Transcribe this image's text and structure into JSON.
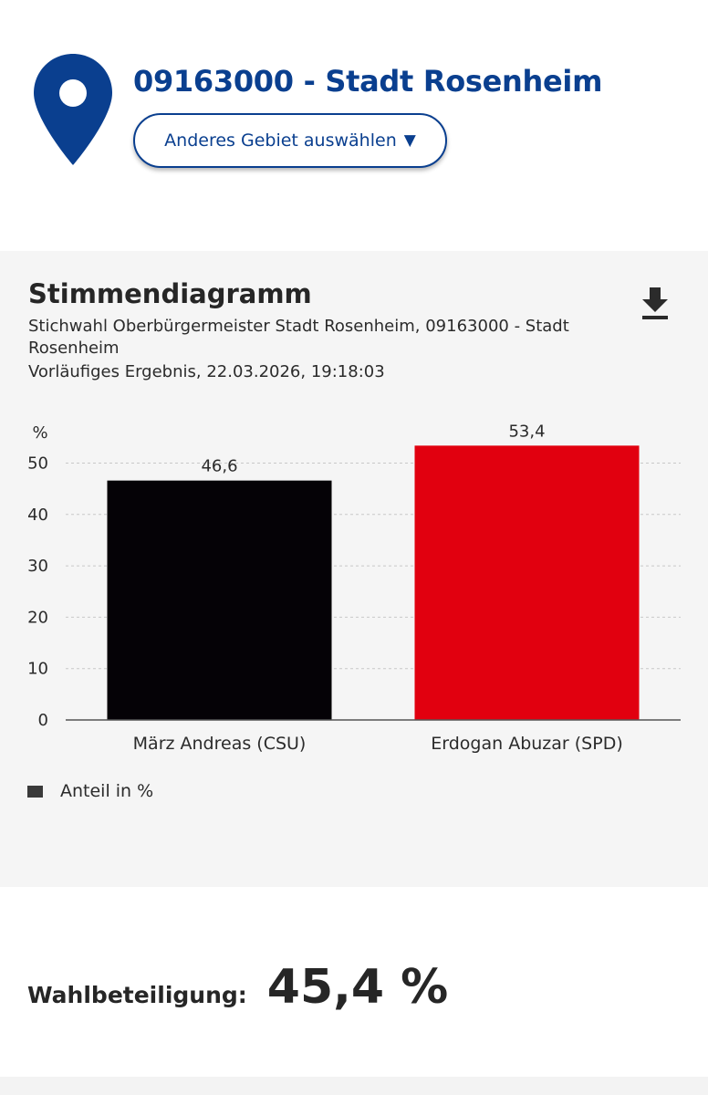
{
  "header": {
    "region_title": "09163000 - Stadt Rosenheim",
    "region_button_label": "Anderes Gebiet auswählen",
    "region_button_caret": "▼",
    "pin_color": "#0a3f8f"
  },
  "panel": {
    "title": "Stimmendiagramm",
    "subtitle": "Stichwahl Oberbürgermeister Stadt Rosenheim, 09163000 - Stadt Rosenheim",
    "status": "Vorläufiges Ergebnis, 22.03.2026, 19:18:03",
    "download_icon": "download-icon"
  },
  "chart_data": {
    "type": "bar",
    "ylabel": "%",
    "ylim": [
      0,
      55
    ],
    "yticks": [
      0,
      10,
      20,
      30,
      40,
      50
    ],
    "grid": true,
    "categories": [
      "März Andreas (CSU)",
      "Erdogan Abuzar (SPD)"
    ],
    "values": [
      46.6,
      53.4
    ],
    "value_labels": [
      "46,6",
      "53,4"
    ],
    "colors": [
      "#050206",
      "#e1000f"
    ],
    "legend": {
      "label": "Anteil in %",
      "position": "bottom-left"
    }
  },
  "turnout": {
    "label": "Wahlbeteiligung:",
    "value": "45,4 %"
  }
}
